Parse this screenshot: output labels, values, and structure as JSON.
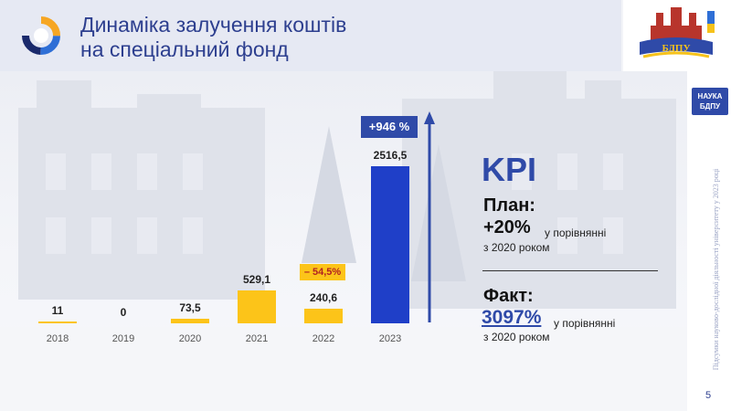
{
  "header": {
    "title_line1": "Динаміка залучення коштів",
    "title_line2": "на спеціальний фонд"
  },
  "crest": {
    "text": "БДПУ"
  },
  "sidebar": {
    "badge_line1": "НАУКА",
    "badge_line2": "БДПУ",
    "vertical_text": "Підсумки науково-дослідної діяльності університету у 2023 році",
    "page_number": "5"
  },
  "colors": {
    "accent": "#2f4aa8",
    "yellow": "#fcc419",
    "dark_blue": "#1f3fc8"
  },
  "chart_data": {
    "type": "bar",
    "categories": [
      "2018",
      "2019",
      "2020",
      "2021",
      "2022",
      "2023"
    ],
    "values": [
      11,
      0,
      73.5,
      529.1,
      240.6,
      2516.5
    ],
    "value_labels": [
      "11",
      "0",
      "73,5",
      "529,1",
      "240,6",
      "2516,5"
    ],
    "bar_colors": [
      "#fcc419",
      "#fcc419",
      "#fcc419",
      "#fcc419",
      "#fcc419",
      "#1f3fc8"
    ],
    "ylim": [
      0,
      2516.5
    ],
    "annotations": [
      {
        "category": "2022",
        "text": "– 54,5%"
      },
      {
        "category": "2023",
        "text": "+946 %"
      }
    ]
  },
  "kpi": {
    "title": "KPI",
    "plan_label": "План:",
    "plan_value": "+20%",
    "plan_comment_line1": "у порівнянні",
    "plan_comment_line2": "з 2020 роком",
    "fact_label": "Факт:",
    "fact_value": "3097%",
    "fact_comment_line1": "у порівнянні",
    "fact_comment_line2": "з 2020 роком"
  }
}
